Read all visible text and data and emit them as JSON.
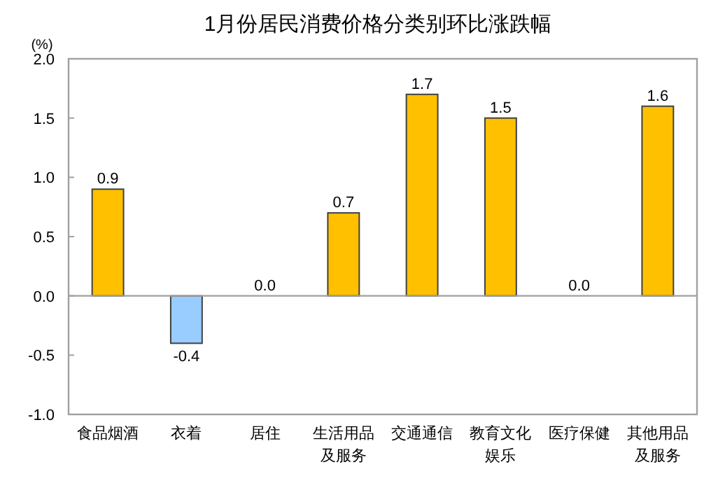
{
  "chart_data": {
    "type": "bar",
    "title": "1月份居民消费价格分类别环比涨跌幅",
    "ylabel": "(%)",
    "categories": [
      "食品烟酒",
      "衣着",
      "居住",
      "生活用品及服务",
      "交通通信",
      "教育文化娱乐",
      "医疗保健",
      "其他用品及服务"
    ],
    "values": [
      0.9,
      -0.4,
      0.0,
      0.7,
      1.7,
      1.5,
      0.0,
      1.6
    ],
    "colors": [
      "#ffc000",
      "#99ccff",
      "#ffc000",
      "#ffc000",
      "#ffc000",
      "#ffc000",
      "#ffc000",
      "#ffc000"
    ],
    "value_labels": [
      "0.9",
      "-0.4",
      "0.0",
      "0.7",
      "1.7",
      "1.5",
      "0.0",
      "1.6"
    ],
    "ylim": [
      -1.0,
      2.0
    ],
    "yticks": [
      {
        "value": 2.0,
        "label": "2.0"
      },
      {
        "value": 1.5,
        "label": "1.5"
      },
      {
        "value": 1.0,
        "label": "1.0"
      },
      {
        "value": 0.5,
        "label": "0.5"
      },
      {
        "value": 0,
        "label": "0.0"
      },
      {
        "value": -0.5,
        "label": "-0.5"
      },
      {
        "value": -1.0,
        "label": "-1.0"
      }
    ]
  }
}
